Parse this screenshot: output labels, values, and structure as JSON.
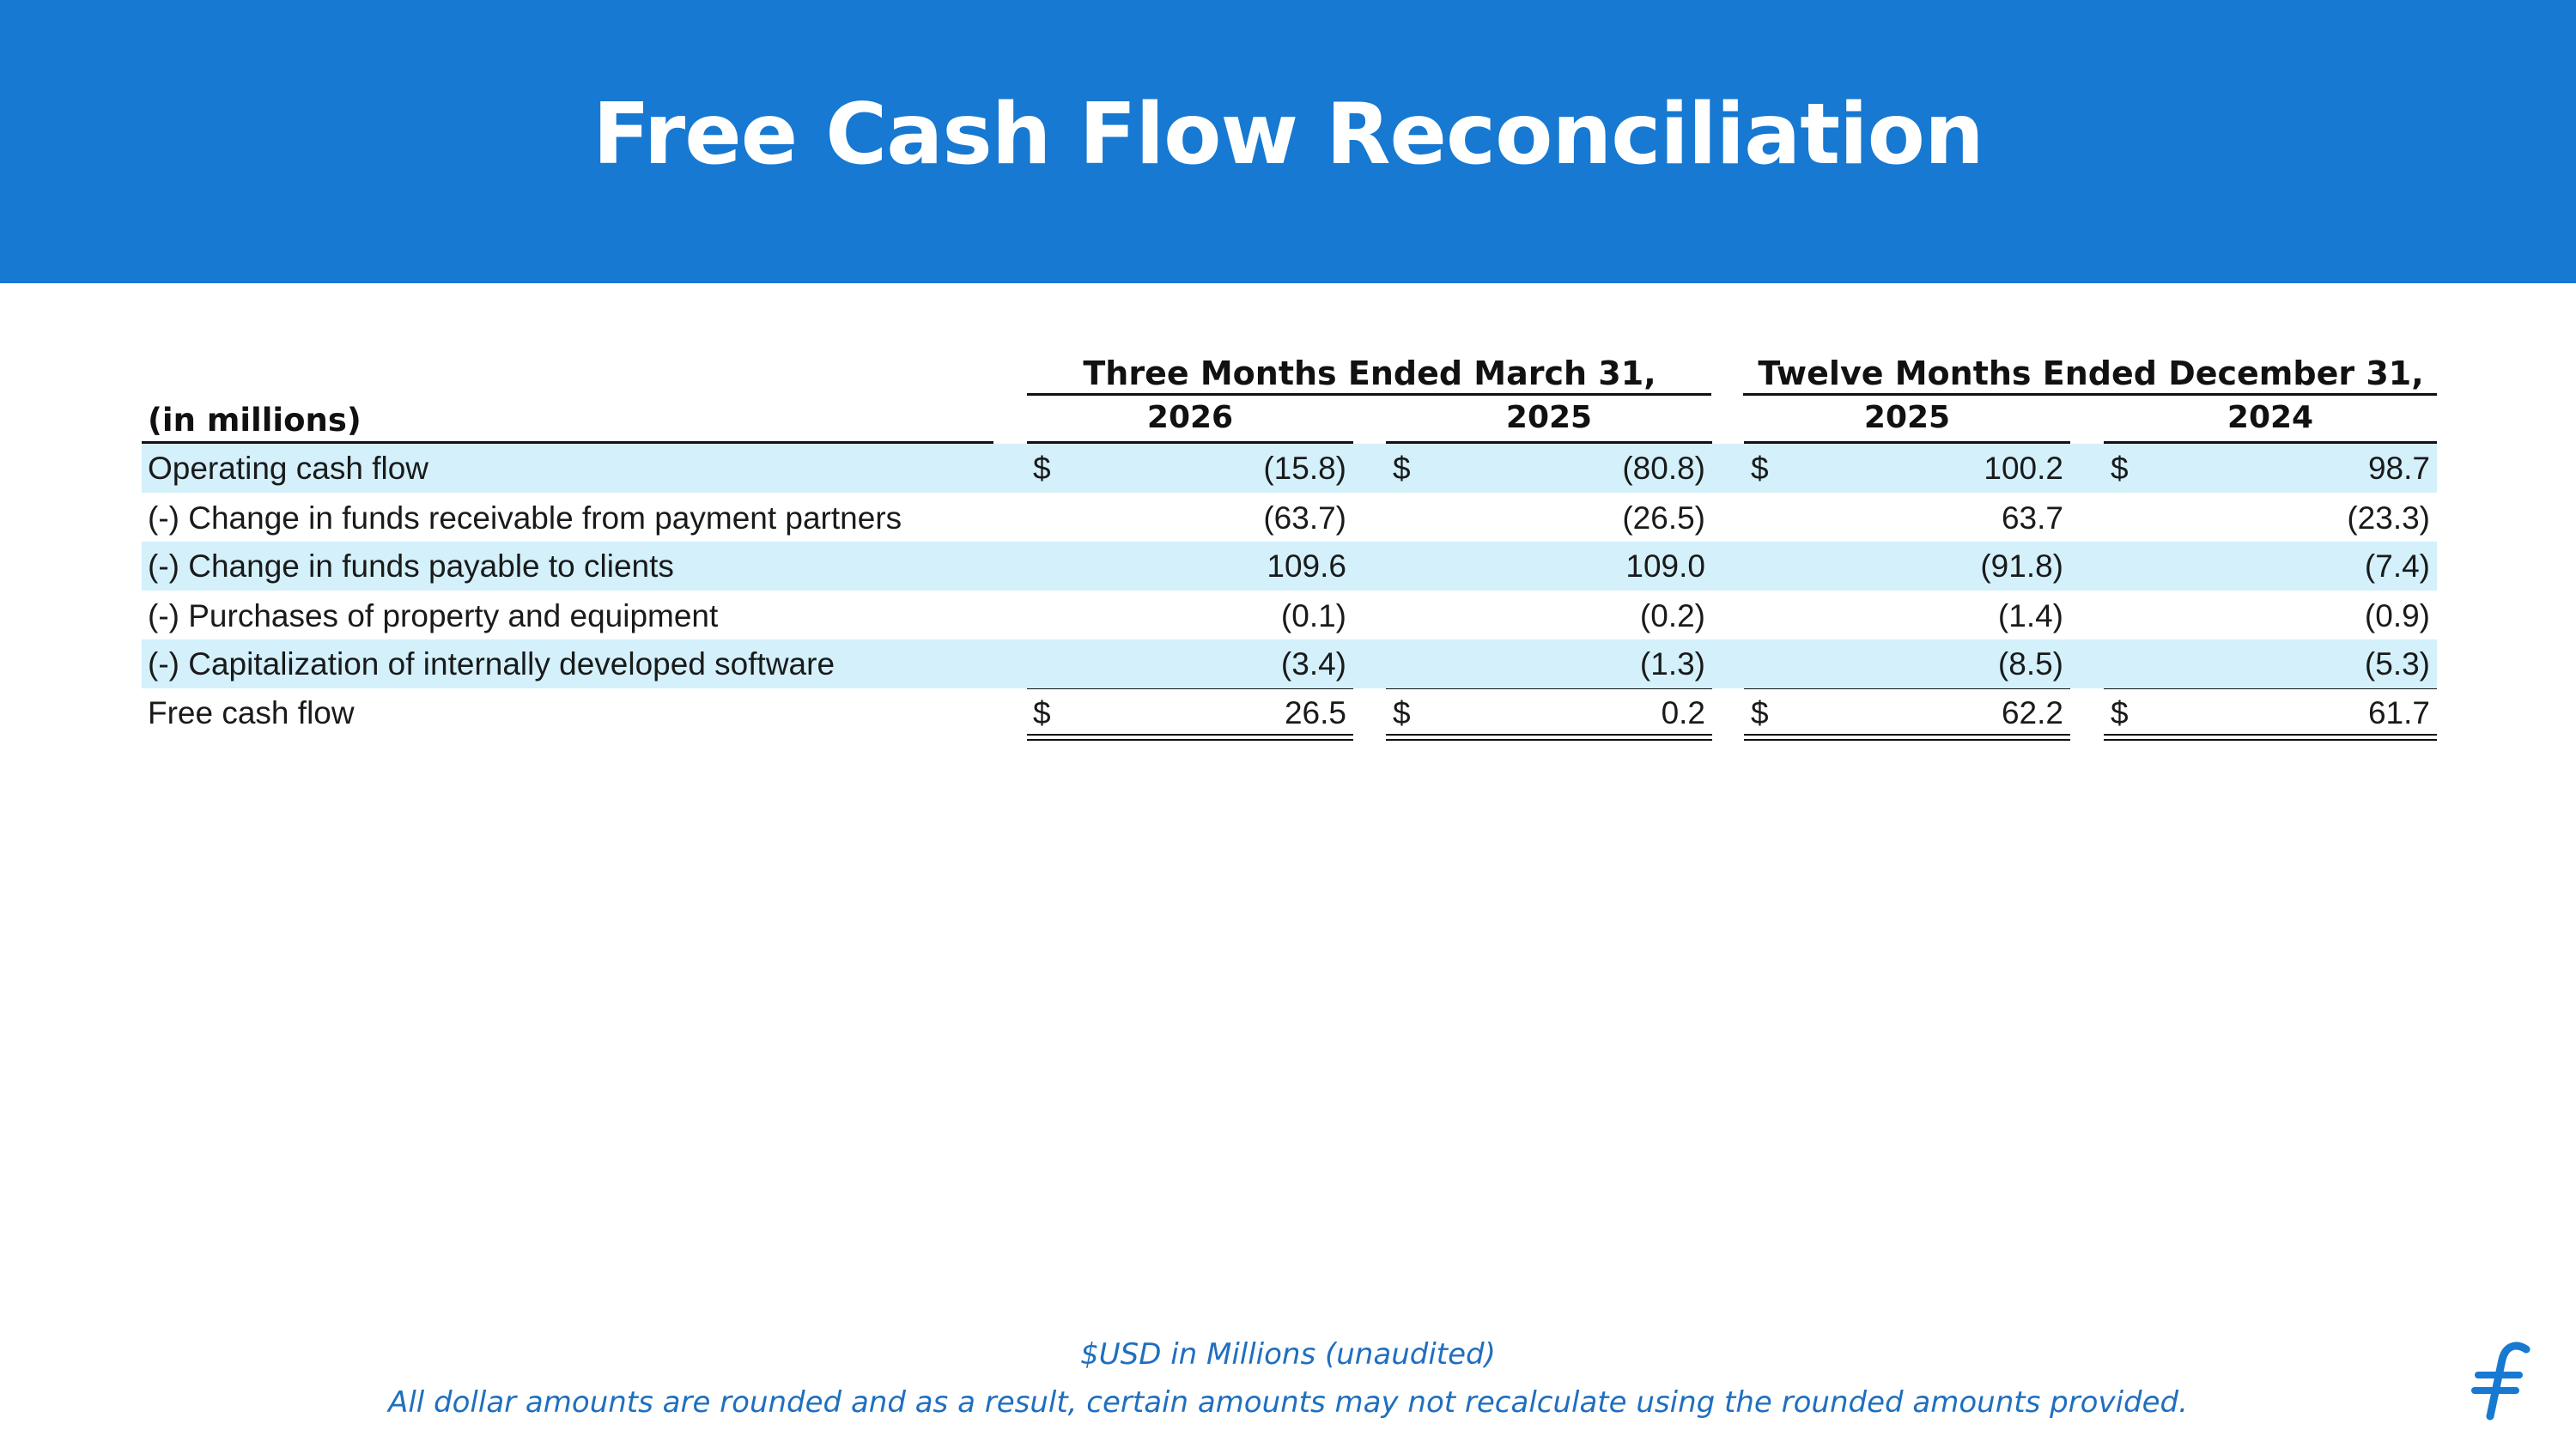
{
  "header": {
    "title": "Free Cash Flow Reconciliation"
  },
  "table": {
    "units_label": "(in millions)",
    "periods": [
      {
        "label": "Three Months Ended March 31,",
        "years": [
          "2026",
          "2025"
        ]
      },
      {
        "label": "Twelve Months Ended December 31,",
        "years": [
          "2025",
          "2024"
        ]
      }
    ],
    "rows": [
      {
        "label": "Operating cash flow",
        "values": [
          "(15.8)",
          "(80.8)",
          "100.2",
          "98.7"
        ],
        "dollar": true,
        "shaded": true
      },
      {
        "label": "(-) Change in funds receivable from payment partners",
        "values": [
          "(63.7)",
          "(26.5)",
          "63.7",
          "(23.3)"
        ],
        "dollar": false,
        "shaded": false
      },
      {
        "label": "(-) Change in funds payable to clients",
        "values": [
          "109.6",
          "109.0",
          "(91.8)",
          "(7.4)"
        ],
        "dollar": false,
        "shaded": true
      },
      {
        "label": "(-) Purchases of property and equipment",
        "values": [
          "(0.1)",
          "(0.2)",
          "(1.4)",
          "(0.9)"
        ],
        "dollar": false,
        "shaded": false
      },
      {
        "label": "(-) Capitalization of internally developed software",
        "values": [
          "(3.4)",
          "(1.3)",
          "(8.5)",
          "(5.3)"
        ],
        "dollar": false,
        "shaded": true
      },
      {
        "label": "Free cash flow",
        "values": [
          "26.5",
          "0.2",
          "62.2",
          "61.7"
        ],
        "dollar": true,
        "shaded": false
      }
    ],
    "dollar_sign": "$"
  },
  "footer": {
    "note1": "$USD in Millions (unaudited)",
    "note2": "All dollar amounts are rounded and as a result, certain amounts may not recalculate using the rounded amounts provided."
  },
  "colors": {
    "brand_blue": "#1779d1",
    "row_shade": "#d3f0fb",
    "note_blue": "#1f6fbf"
  },
  "icons": {
    "logo": "brand-logo-icon"
  }
}
